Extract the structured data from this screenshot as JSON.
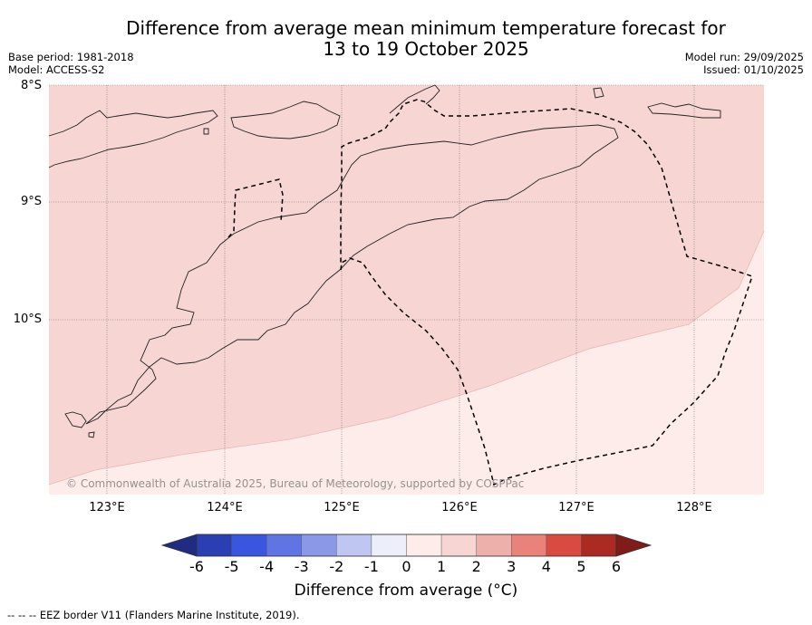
{
  "title_line1": "Difference from average mean minimum temperature forecast for",
  "title_line2": "13 to 19 October 2025",
  "meta_left": {
    "base_period": "Base period: 1981-2018",
    "model": "Model: ACCESS-S2"
  },
  "meta_right": {
    "model_run": "Model run: 29/09/2025",
    "issued": "Issued: 01/10/2025"
  },
  "latitude_labels": [
    "8°S",
    "9°S",
    "10°S"
  ],
  "longitude_labels": [
    "123°E",
    "124°E",
    "125°E",
    "126°E",
    "127°E",
    "128°E"
  ],
  "copyright": "© Commonwealth of Australia 2025, Bureau of Meteorology, supported by COSPPac",
  "colorbar": {
    "ticks": [
      "-6",
      "-5",
      "-4",
      "-3",
      "-2",
      "-1",
      "0",
      "1",
      "2",
      "3",
      "4",
      "5",
      "6"
    ],
    "colors": [
      "#1f2c82",
      "#2a3fb4",
      "#3a55e0",
      "#6174e4",
      "#8a98e8",
      "#c0c6f2",
      "#eceef9",
      "#fdecea",
      "#f6d5d2",
      "#eeb0aa",
      "#e8827b",
      "#d94a40",
      "#ab2a22",
      "#7f1c1a"
    ],
    "label": "Difference from average (°C)"
  },
  "legend_footer": "--  --  -- EEZ border V11 (Flanders Marine Institute, 2019).",
  "colors": {
    "anomaly_1_2": "#f6d5d2",
    "anomaly_0_1": "#fdecea"
  }
}
